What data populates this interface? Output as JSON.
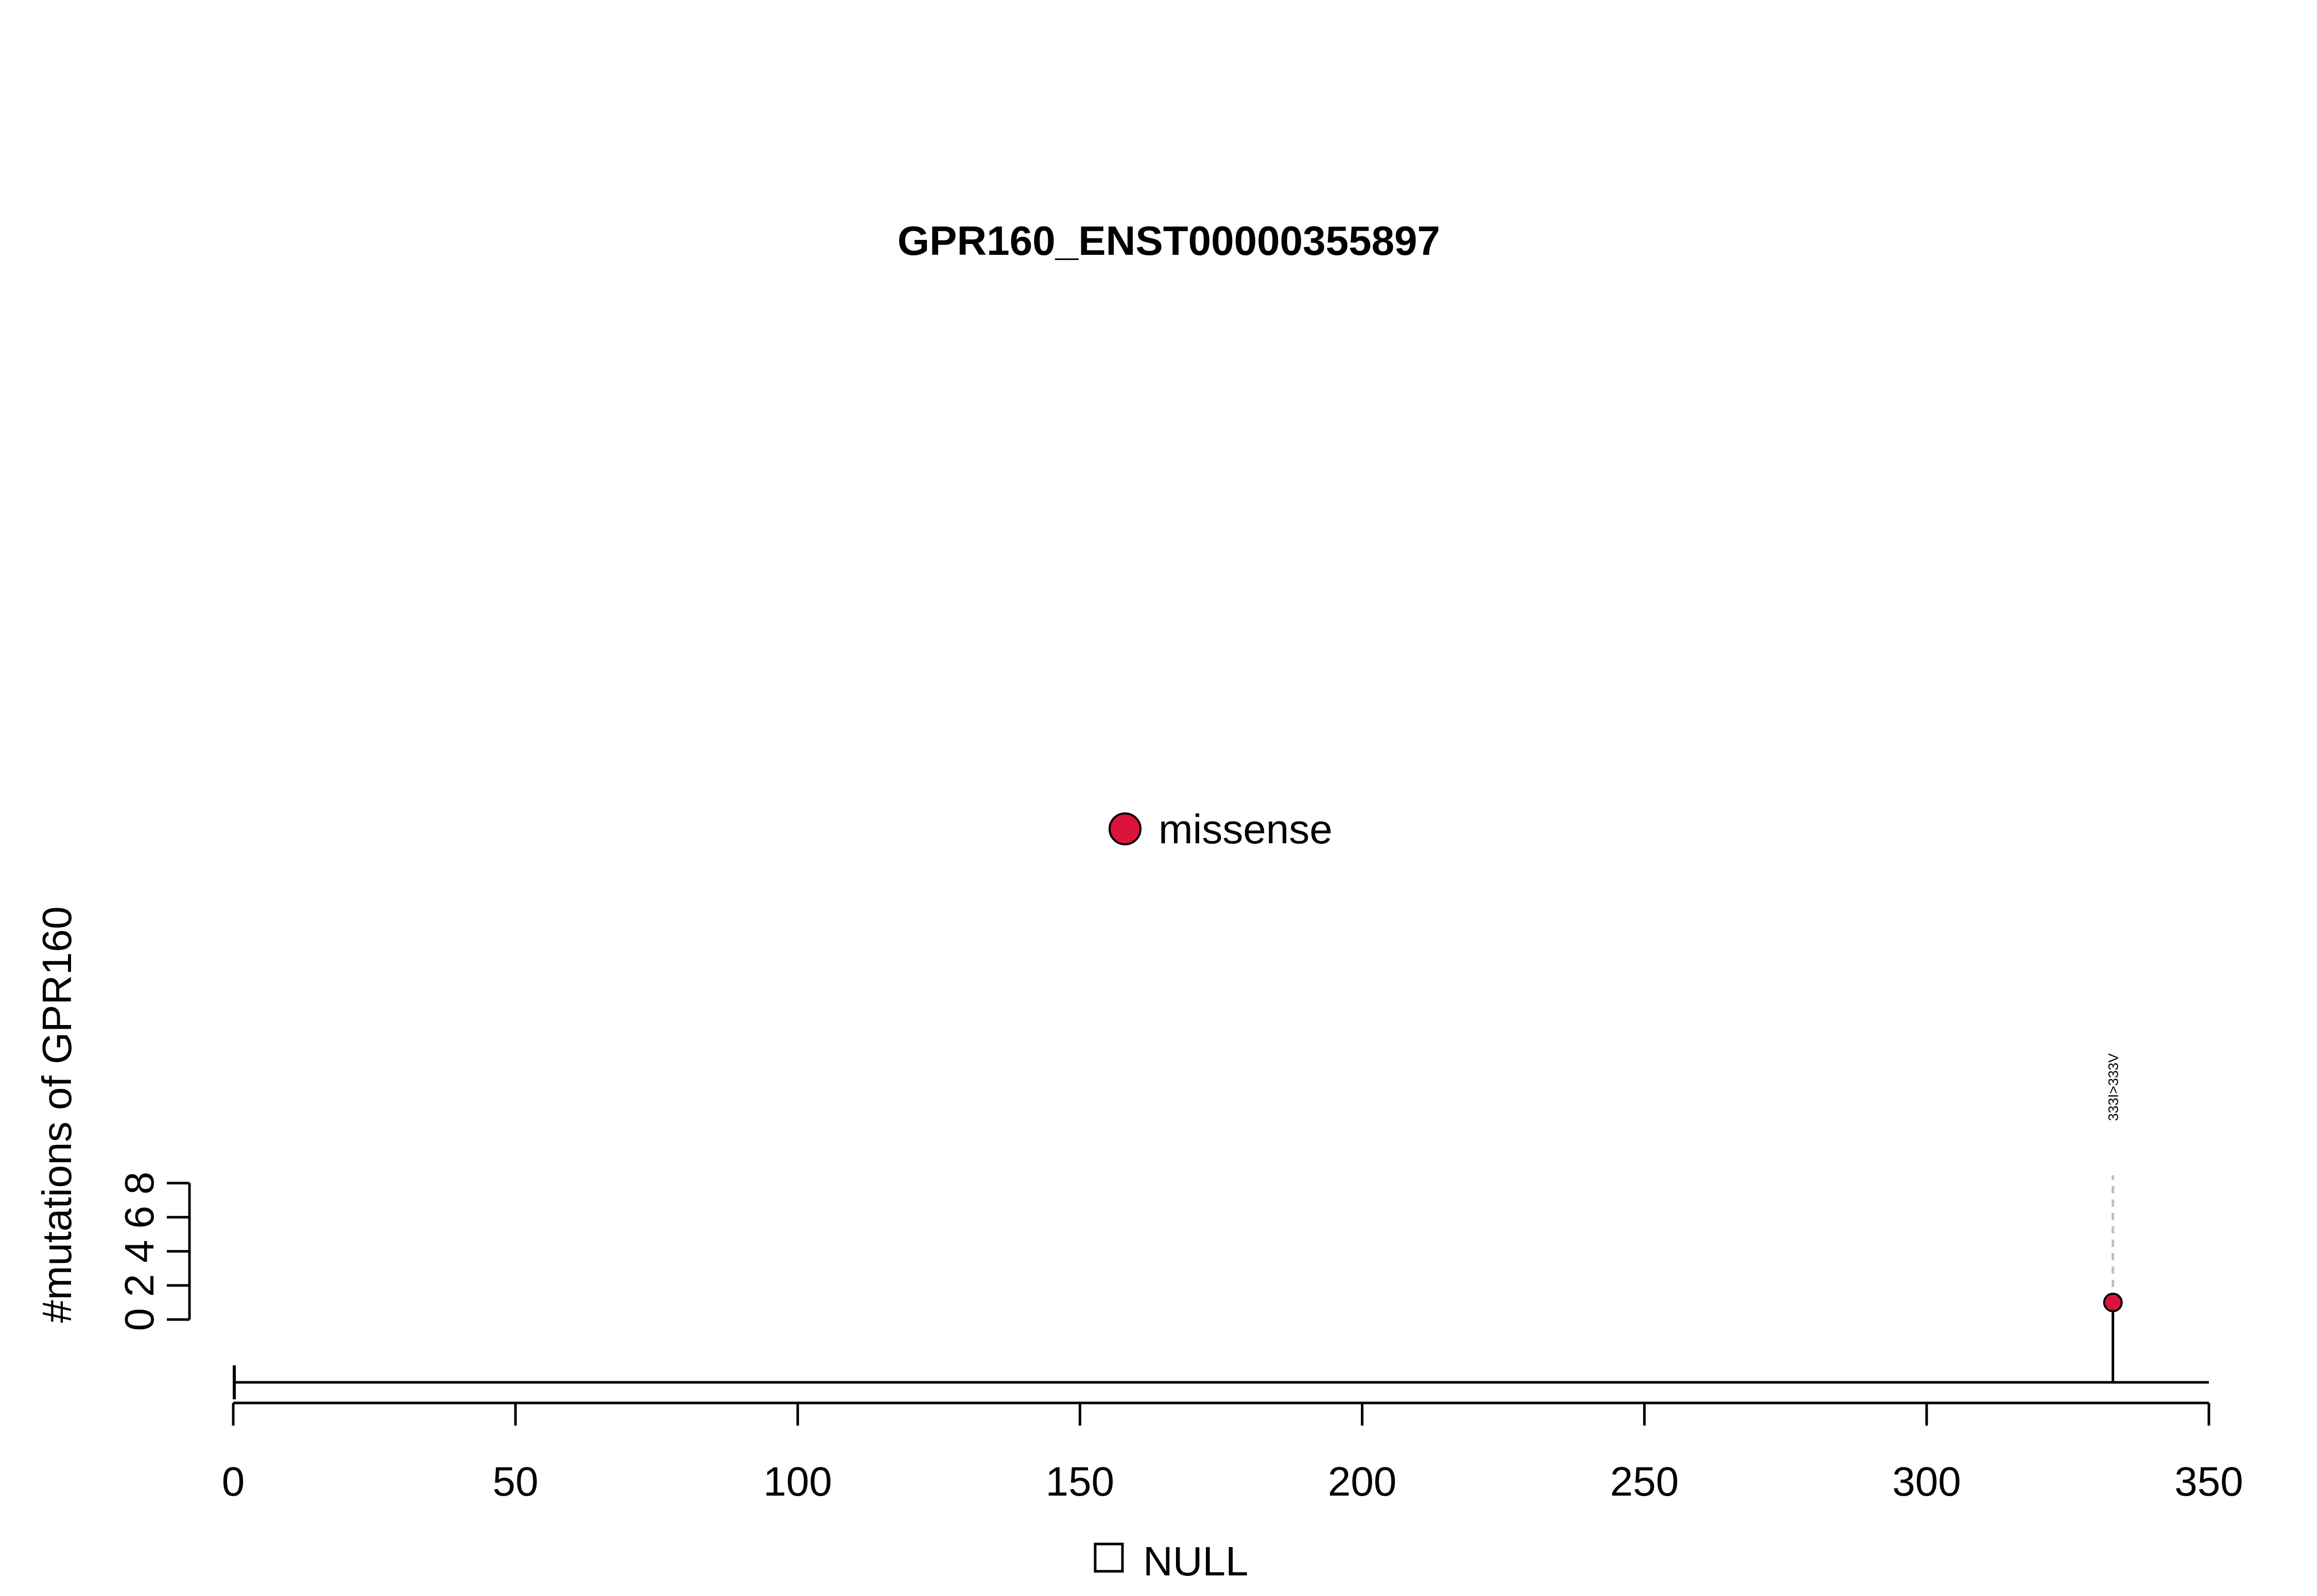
{
  "chart_data": {
    "type": "lollipop",
    "title": "GPR160_ENST00000355897",
    "ylabel": "#mutations of GPR160",
    "xlabel": "",
    "xlim": [
      0,
      350
    ],
    "ylim": [
      0,
      8
    ],
    "x_ticks": [
      0,
      50,
      100,
      150,
      200,
      250,
      300,
      350
    ],
    "y_ticks": [
      0,
      2,
      4,
      6,
      8
    ],
    "protein_length": 350,
    "mutations": [
      {
        "position": 333,
        "count": 1,
        "label": "333I>333V",
        "type": "missense"
      }
    ],
    "legend_types": [
      {
        "label": "missense",
        "color": "#DC143C"
      }
    ],
    "legend_domains": [
      {
        "label": "NULL",
        "color": "#FFFFFF"
      }
    ],
    "grid": false
  }
}
